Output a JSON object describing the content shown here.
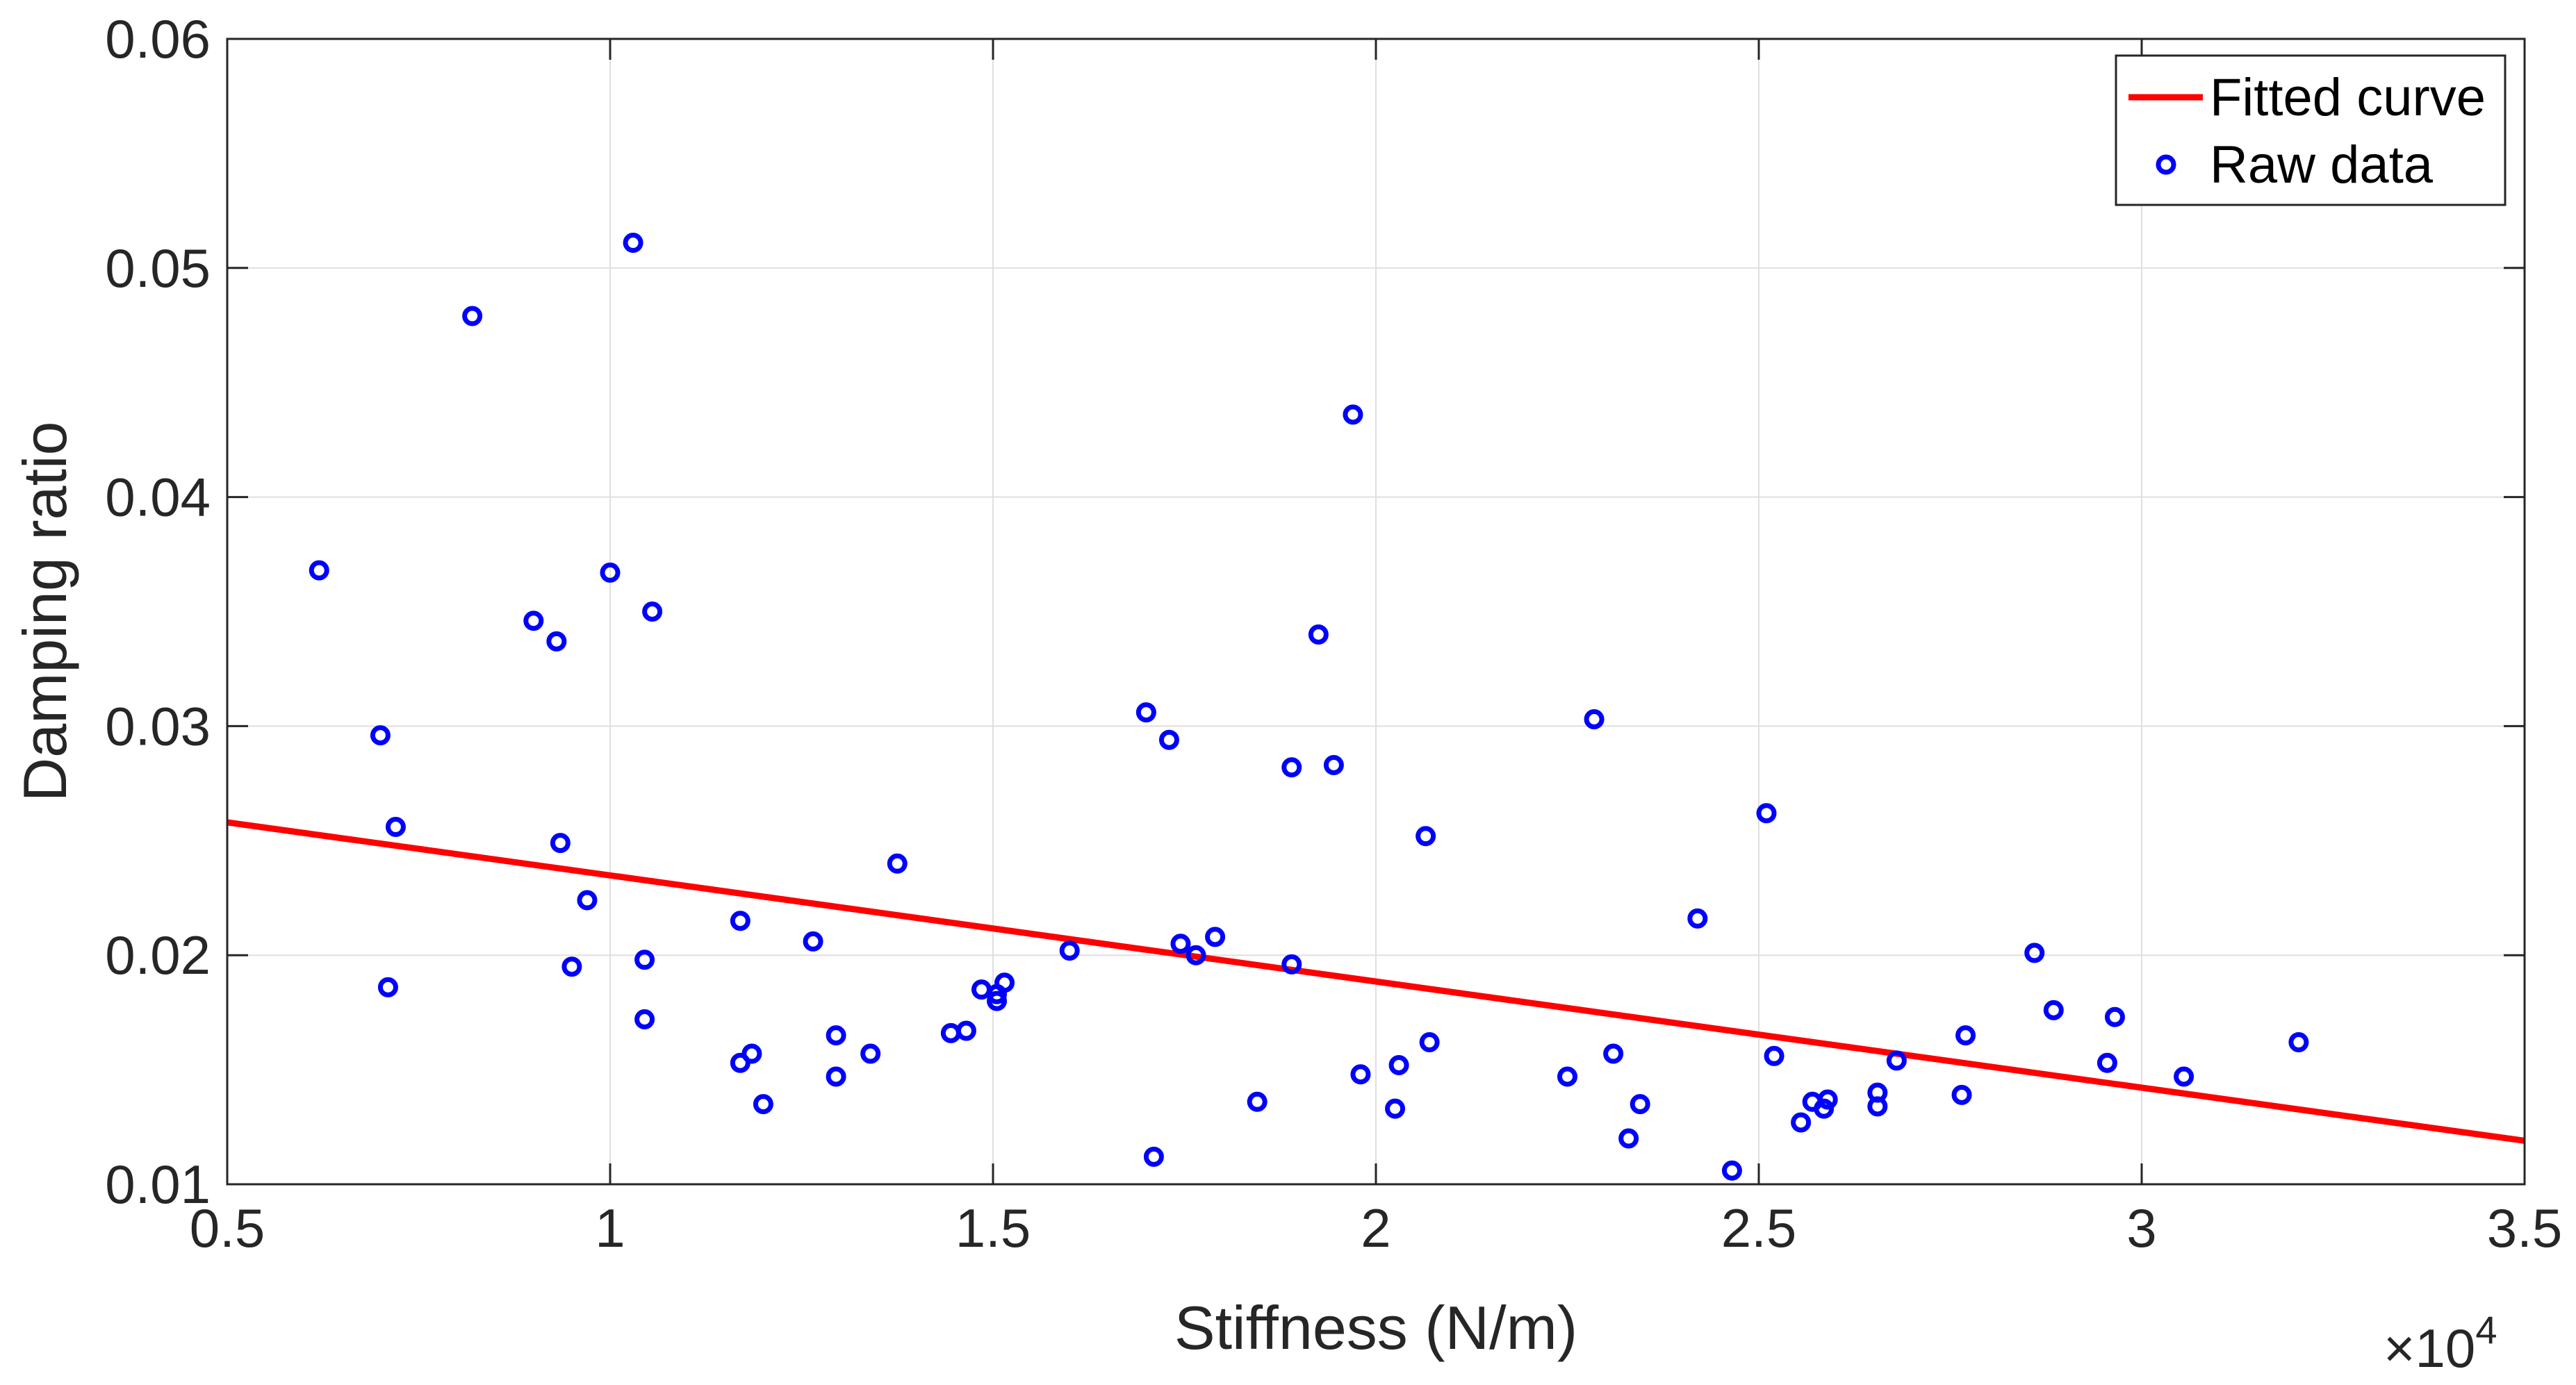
{
  "chart_data": {
    "type": "scatter",
    "title": "",
    "xlabel": "Stiffness (N/m)",
    "ylabel": "Damping ratio",
    "x_multiplier_label": "×10",
    "x_multiplier_exponent": "4",
    "xlim": [
      0.5,
      3.5
    ],
    "ylim": [
      0.01,
      0.06
    ],
    "grid": true,
    "legend_position": "top-right",
    "x_ticks": [
      0.5,
      1,
      1.5,
      2,
      2.5,
      3,
      3.5
    ],
    "x_tick_labels": [
      "0.5",
      "1",
      "1.5",
      "2",
      "2.5",
      "3",
      "3.5"
    ],
    "y_ticks": [
      0.01,
      0.02,
      0.03,
      0.04,
      0.05,
      0.06
    ],
    "y_tick_labels": [
      "0.01",
      "0.02",
      "0.03",
      "0.04",
      "0.05",
      "0.06"
    ],
    "colors": {
      "fitted_curve": "#ff0000",
      "raw_data": "#0000ff",
      "axes": "#262626",
      "grid": "#dfdfdf"
    },
    "series": [
      {
        "name": "Fitted curve",
        "kind": "line",
        "x": [
          0.5,
          3.5
        ],
        "y": [
          0.0258,
          0.0119
        ]
      },
      {
        "name": "Raw data",
        "kind": "scatter",
        "x": [
          0.62,
          0.7,
          0.71,
          0.72,
          0.82,
          0.9,
          0.93,
          0.935,
          0.95,
          0.97,
          1.0,
          1.03,
          1.045,
          1.045,
          1.055,
          1.17,
          1.17,
          1.185,
          1.2,
          1.265,
          1.295,
          1.295,
          1.34,
          1.375,
          1.445,
          1.465,
          1.485,
          1.505,
          1.505,
          1.515,
          1.6,
          1.7,
          1.71,
          1.73,
          1.745,
          1.765,
          1.79,
          1.845,
          1.89,
          1.89,
          1.925,
          1.945,
          1.97,
          1.98,
          2.025,
          2.03,
          2.065,
          2.07,
          2.25,
          2.285,
          2.31,
          2.33,
          2.345,
          2.42,
          2.465,
          2.51,
          2.52,
          2.555,
          2.57,
          2.585,
          2.59,
          2.655,
          2.655,
          2.68,
          2.765,
          2.77,
          2.86,
          2.885,
          2.955,
          2.965,
          3.055,
          3.205
        ],
        "y": [
          0.0368,
          0.0296,
          0.0186,
          0.0256,
          0.0479,
          0.0346,
          0.0337,
          0.0249,
          0.0195,
          0.0224,
          0.0367,
          0.0511,
          0.0198,
          0.0172,
          0.035,
          0.0215,
          0.0153,
          0.0157,
          0.0135,
          0.0206,
          0.0165,
          0.0147,
          0.0157,
          0.024,
          0.0166,
          0.0167,
          0.0185,
          0.0183,
          0.018,
          0.0188,
          0.0202,
          0.0306,
          0.0112,
          0.0294,
          0.0205,
          0.02,
          0.0208,
          0.0136,
          0.0282,
          0.0196,
          0.034,
          0.0283,
          0.0436,
          0.0148,
          0.0133,
          0.0152,
          0.0252,
          0.0162,
          0.0147,
          0.0303,
          0.0157,
          0.012,
          0.0135,
          0.0216,
          0.0106,
          0.0262,
          0.0156,
          0.0127,
          0.0136,
          0.0133,
          0.0137,
          0.0134,
          0.014,
          0.0154,
          0.0139,
          0.0165,
          0.0201,
          0.0176,
          0.0153,
          0.0173,
          0.0147,
          0.0162
        ]
      }
    ]
  }
}
